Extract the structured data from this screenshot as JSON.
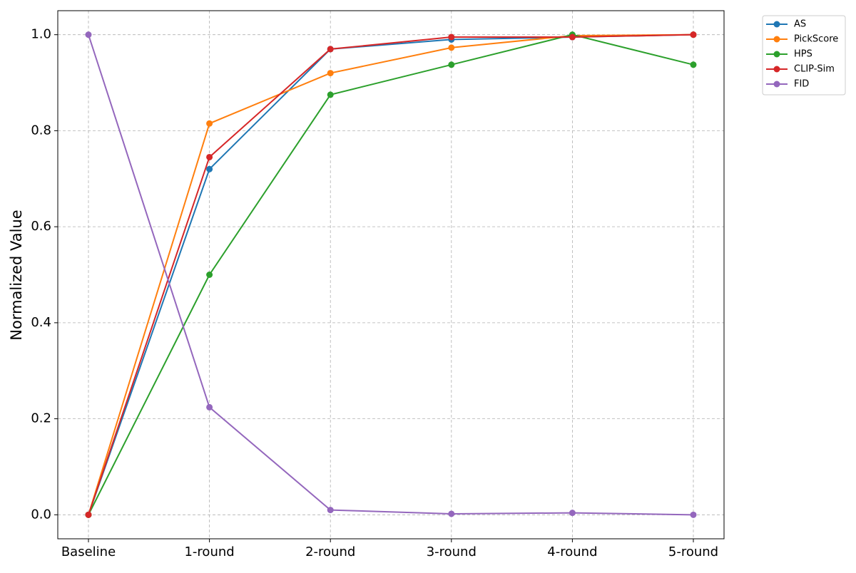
{
  "chart_data": {
    "type": "line",
    "y_label": "Normalized Value",
    "categories": [
      "Baseline",
      "1-round",
      "2-round",
      "3-round",
      "4-round",
      "5-round"
    ],
    "series": [
      {
        "name": "AS",
        "color": "#1f77b4",
        "values": [
          0,
          0.72,
          0.97,
          0.99,
          0.995,
          1.0
        ]
      },
      {
        "name": "PickScore",
        "color": "#ff7f0e",
        "values": [
          0,
          0.815,
          0.92,
          0.973,
          0.998,
          1.0
        ]
      },
      {
        "name": "HPS",
        "color": "#2ca02c",
        "values": [
          0,
          0.5,
          0.875,
          0.9375,
          1.0,
          0.9375
        ]
      },
      {
        "name": "CLIP-Sim",
        "color": "#d62728",
        "values": [
          0,
          0.745,
          0.97,
          0.995,
          0.995,
          1.0
        ]
      },
      {
        "name": "FID",
        "color": "#9467bd",
        "values": [
          1.0,
          0.224,
          0.01,
          0.002,
          0.004,
          0.0
        ]
      }
    ],
    "ylim": [
      -0.05,
      1.05
    ],
    "yticks": [
      {
        "value": 0,
        "label": "0.0"
      },
      {
        "value": 0.2,
        "label": "0.2"
      },
      {
        "value": 0.4,
        "label": "0.4"
      },
      {
        "value": 0.6,
        "label": "0.6"
      },
      {
        "value": 0.8,
        "label": "0.8"
      },
      {
        "value": 1,
        "label": "1.0"
      }
    ],
    "grid": true,
    "legend": "outside-upper-right"
  }
}
